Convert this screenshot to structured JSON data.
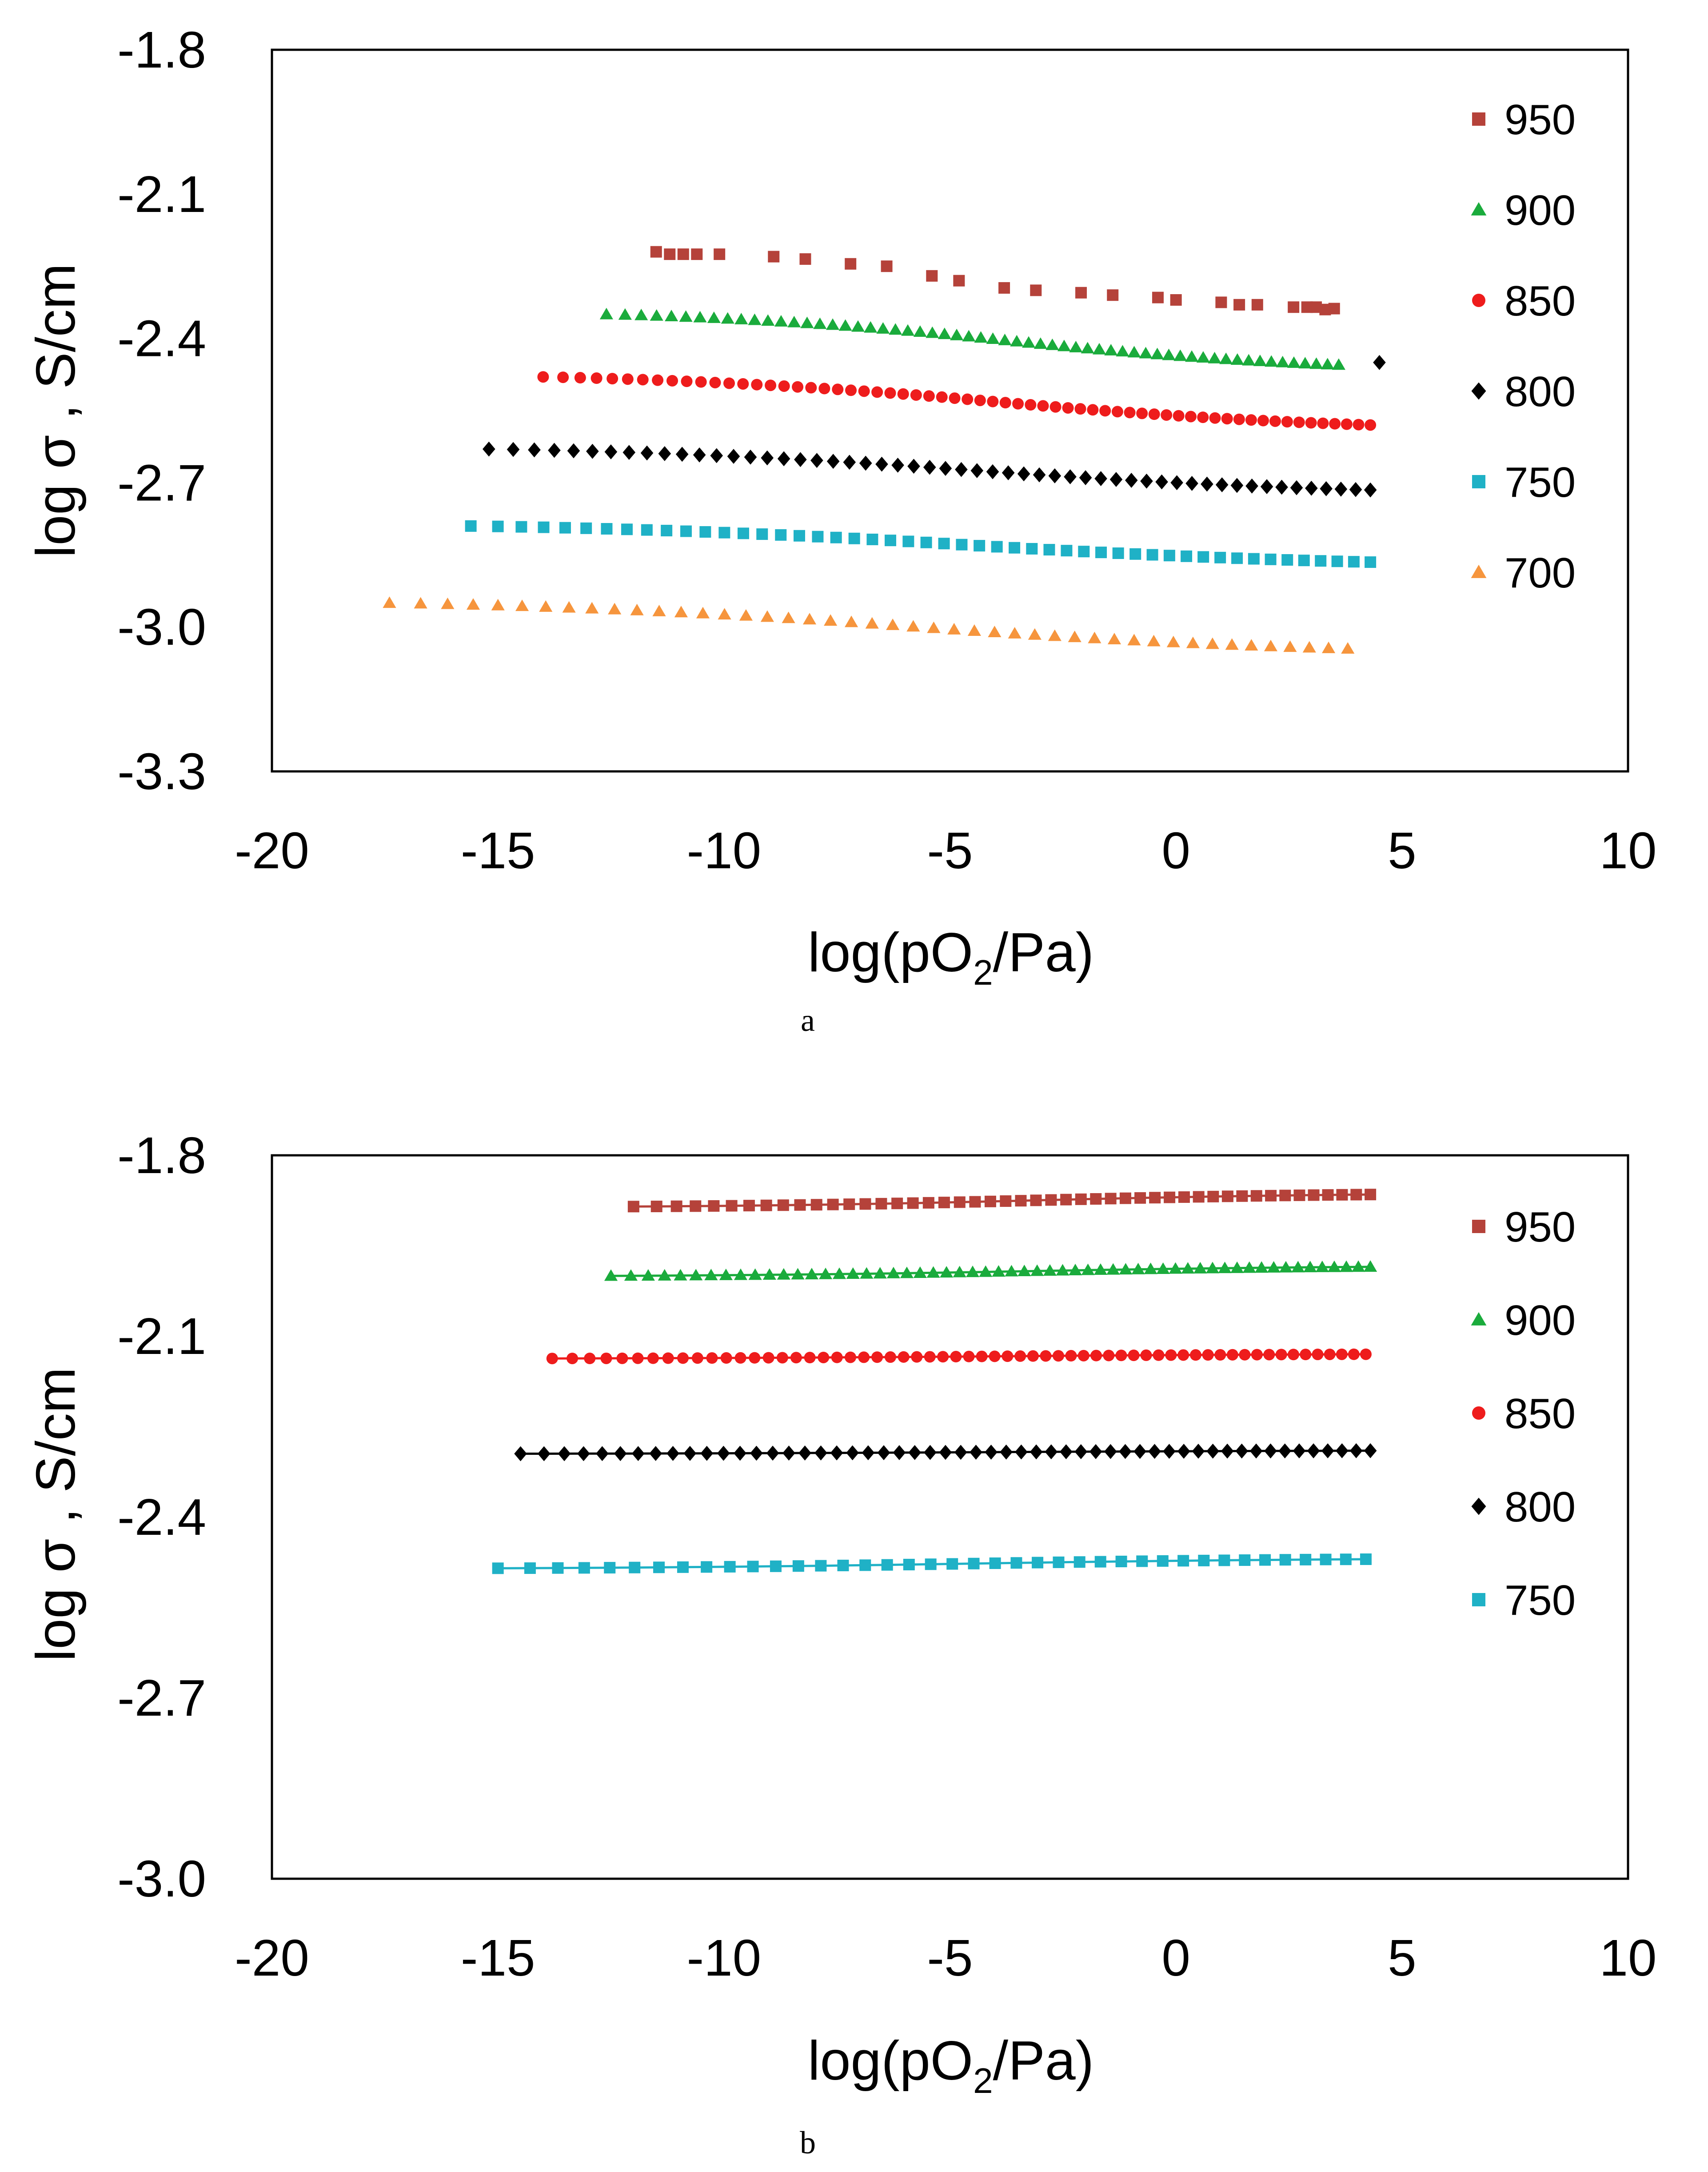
{
  "colors": {
    "950": "#b5423a",
    "900": "#1aab3c",
    "850": "#ee1c1c",
    "800": "#000000",
    "750": "#1fb1c6",
    "700": "#f6953d"
  },
  "chart_data": [
    {
      "type": "scatter",
      "panel_label": "a",
      "xlabel_main": "log(pO",
      "xlabel_sub": "2",
      "xlabel_tail": "/Pa)",
      "ylabel": "log σ , S/cm",
      "xlim": [
        -20,
        10
      ],
      "ylim": [
        -3.3,
        -1.8
      ],
      "xticks": [
        "-20",
        "-15",
        "-10",
        "-5",
        "0",
        "5",
        "10"
      ],
      "yticks": [
        "-1.8",
        "-2.1",
        "-2.4",
        "-2.7",
        "-3.0",
        "-3.3"
      ],
      "legend": [
        "950",
        "900",
        "850",
        "800",
        "750",
        "700"
      ],
      "series": [
        {
          "name": "950",
          "marker": "square",
          "points": [
            [
              -11.5,
              -2.22
            ],
            [
              -11.2,
              -2.225
            ],
            [
              -10.9,
              -2.225
            ],
            [
              -10.6,
              -2.225
            ],
            [
              -10.1,
              -2.225
            ],
            [
              -8.9,
              -2.23
            ],
            [
              -8.2,
              -2.235
            ],
            [
              -7.2,
              -2.245
            ],
            [
              -6.4,
              -2.25
            ],
            [
              -5.4,
              -2.27
            ],
            [
              -4.8,
              -2.28
            ],
            [
              -3.8,
              -2.295
            ],
            [
              -3.1,
              -2.3
            ],
            [
              -2.1,
              -2.305
            ],
            [
              -1.4,
              -2.31
            ],
            [
              -0.4,
              -2.315
            ],
            [
              0,
              -2.32
            ],
            [
              1,
              -2.325
            ],
            [
              1.4,
              -2.33
            ],
            [
              1.8,
              -2.33
            ],
            [
              2.6,
              -2.335
            ],
            [
              2.9,
              -2.335
            ],
            [
              3.1,
              -2.335
            ],
            [
              3.3,
              -2.34
            ],
            [
              3.5,
              -2.338
            ]
          ]
        },
        {
          "name": "900",
          "marker": "triangle",
          "x0": -12.6,
          "x1": 3.6,
          "y0": -2.35,
          "y1": -2.455,
          "n": 60
        },
        {
          "name": "850",
          "marker": "circle",
          "x0": -14.0,
          "x1": 4.3,
          "y0": -2.48,
          "y1": -2.58,
          "n": 64
        },
        {
          "name": "800",
          "marker": "diamond",
          "x0": -15.2,
          "x1": 4.3,
          "y0": -2.63,
          "y1": -2.715,
          "n": 55,
          "extra": [
            [
              4.5,
              -2.45
            ]
          ]
        },
        {
          "name": "750",
          "marker": "square",
          "x0": -15.6,
          "x1": 4.3,
          "y0": -2.79,
          "y1": -2.865,
          "n": 50
        },
        {
          "name": "700",
          "marker": "triangle",
          "x0": -17.4,
          "x1": 3.8,
          "y0": -2.95,
          "y1": -3.045,
          "n": 46
        }
      ]
    },
    {
      "type": "scatter",
      "panel_label": "b",
      "xlabel_main": "log(pO",
      "xlabel_sub": "2",
      "xlabel_tail": "/Pa)",
      "ylabel": "log σ , S/cm",
      "xlim": [
        -20,
        10
      ],
      "ylim": [
        -3.0,
        -1.8
      ],
      "xticks": [
        "-20",
        "-15",
        "-10",
        "-5",
        "0",
        "5",
        "10"
      ],
      "yticks": [
        "-1.8",
        "-2.1",
        "-2.4",
        "-2.7",
        "-3.0"
      ],
      "legend": [
        "950",
        "900",
        "850",
        "800",
        "750"
      ],
      "series": [
        {
          "name": "950",
          "marker": "square",
          "x0": -12.0,
          "x1": 4.3,
          "y0": -1.885,
          "y1": -1.865,
          "n": 48,
          "line": true
        },
        {
          "name": "900",
          "marker": "triangle",
          "x0": -12.5,
          "x1": 4.3,
          "y0": -2.0,
          "y1": -1.985,
          "n": 58,
          "line": true
        },
        {
          "name": "850",
          "marker": "circle",
          "x0": -13.8,
          "x1": 4.2,
          "y0": -2.137,
          "y1": -2.13,
          "n": 62,
          "line": true
        },
        {
          "name": "800",
          "marker": "diamond",
          "x0": -14.5,
          "x1": 4.3,
          "y0": -2.295,
          "y1": -2.29,
          "n": 55,
          "line": true
        },
        {
          "name": "750",
          "marker": "square",
          "x0": -15.0,
          "x1": 4.2,
          "y0": -2.485,
          "y1": -2.47,
          "n": 40,
          "line": true
        }
      ]
    }
  ]
}
